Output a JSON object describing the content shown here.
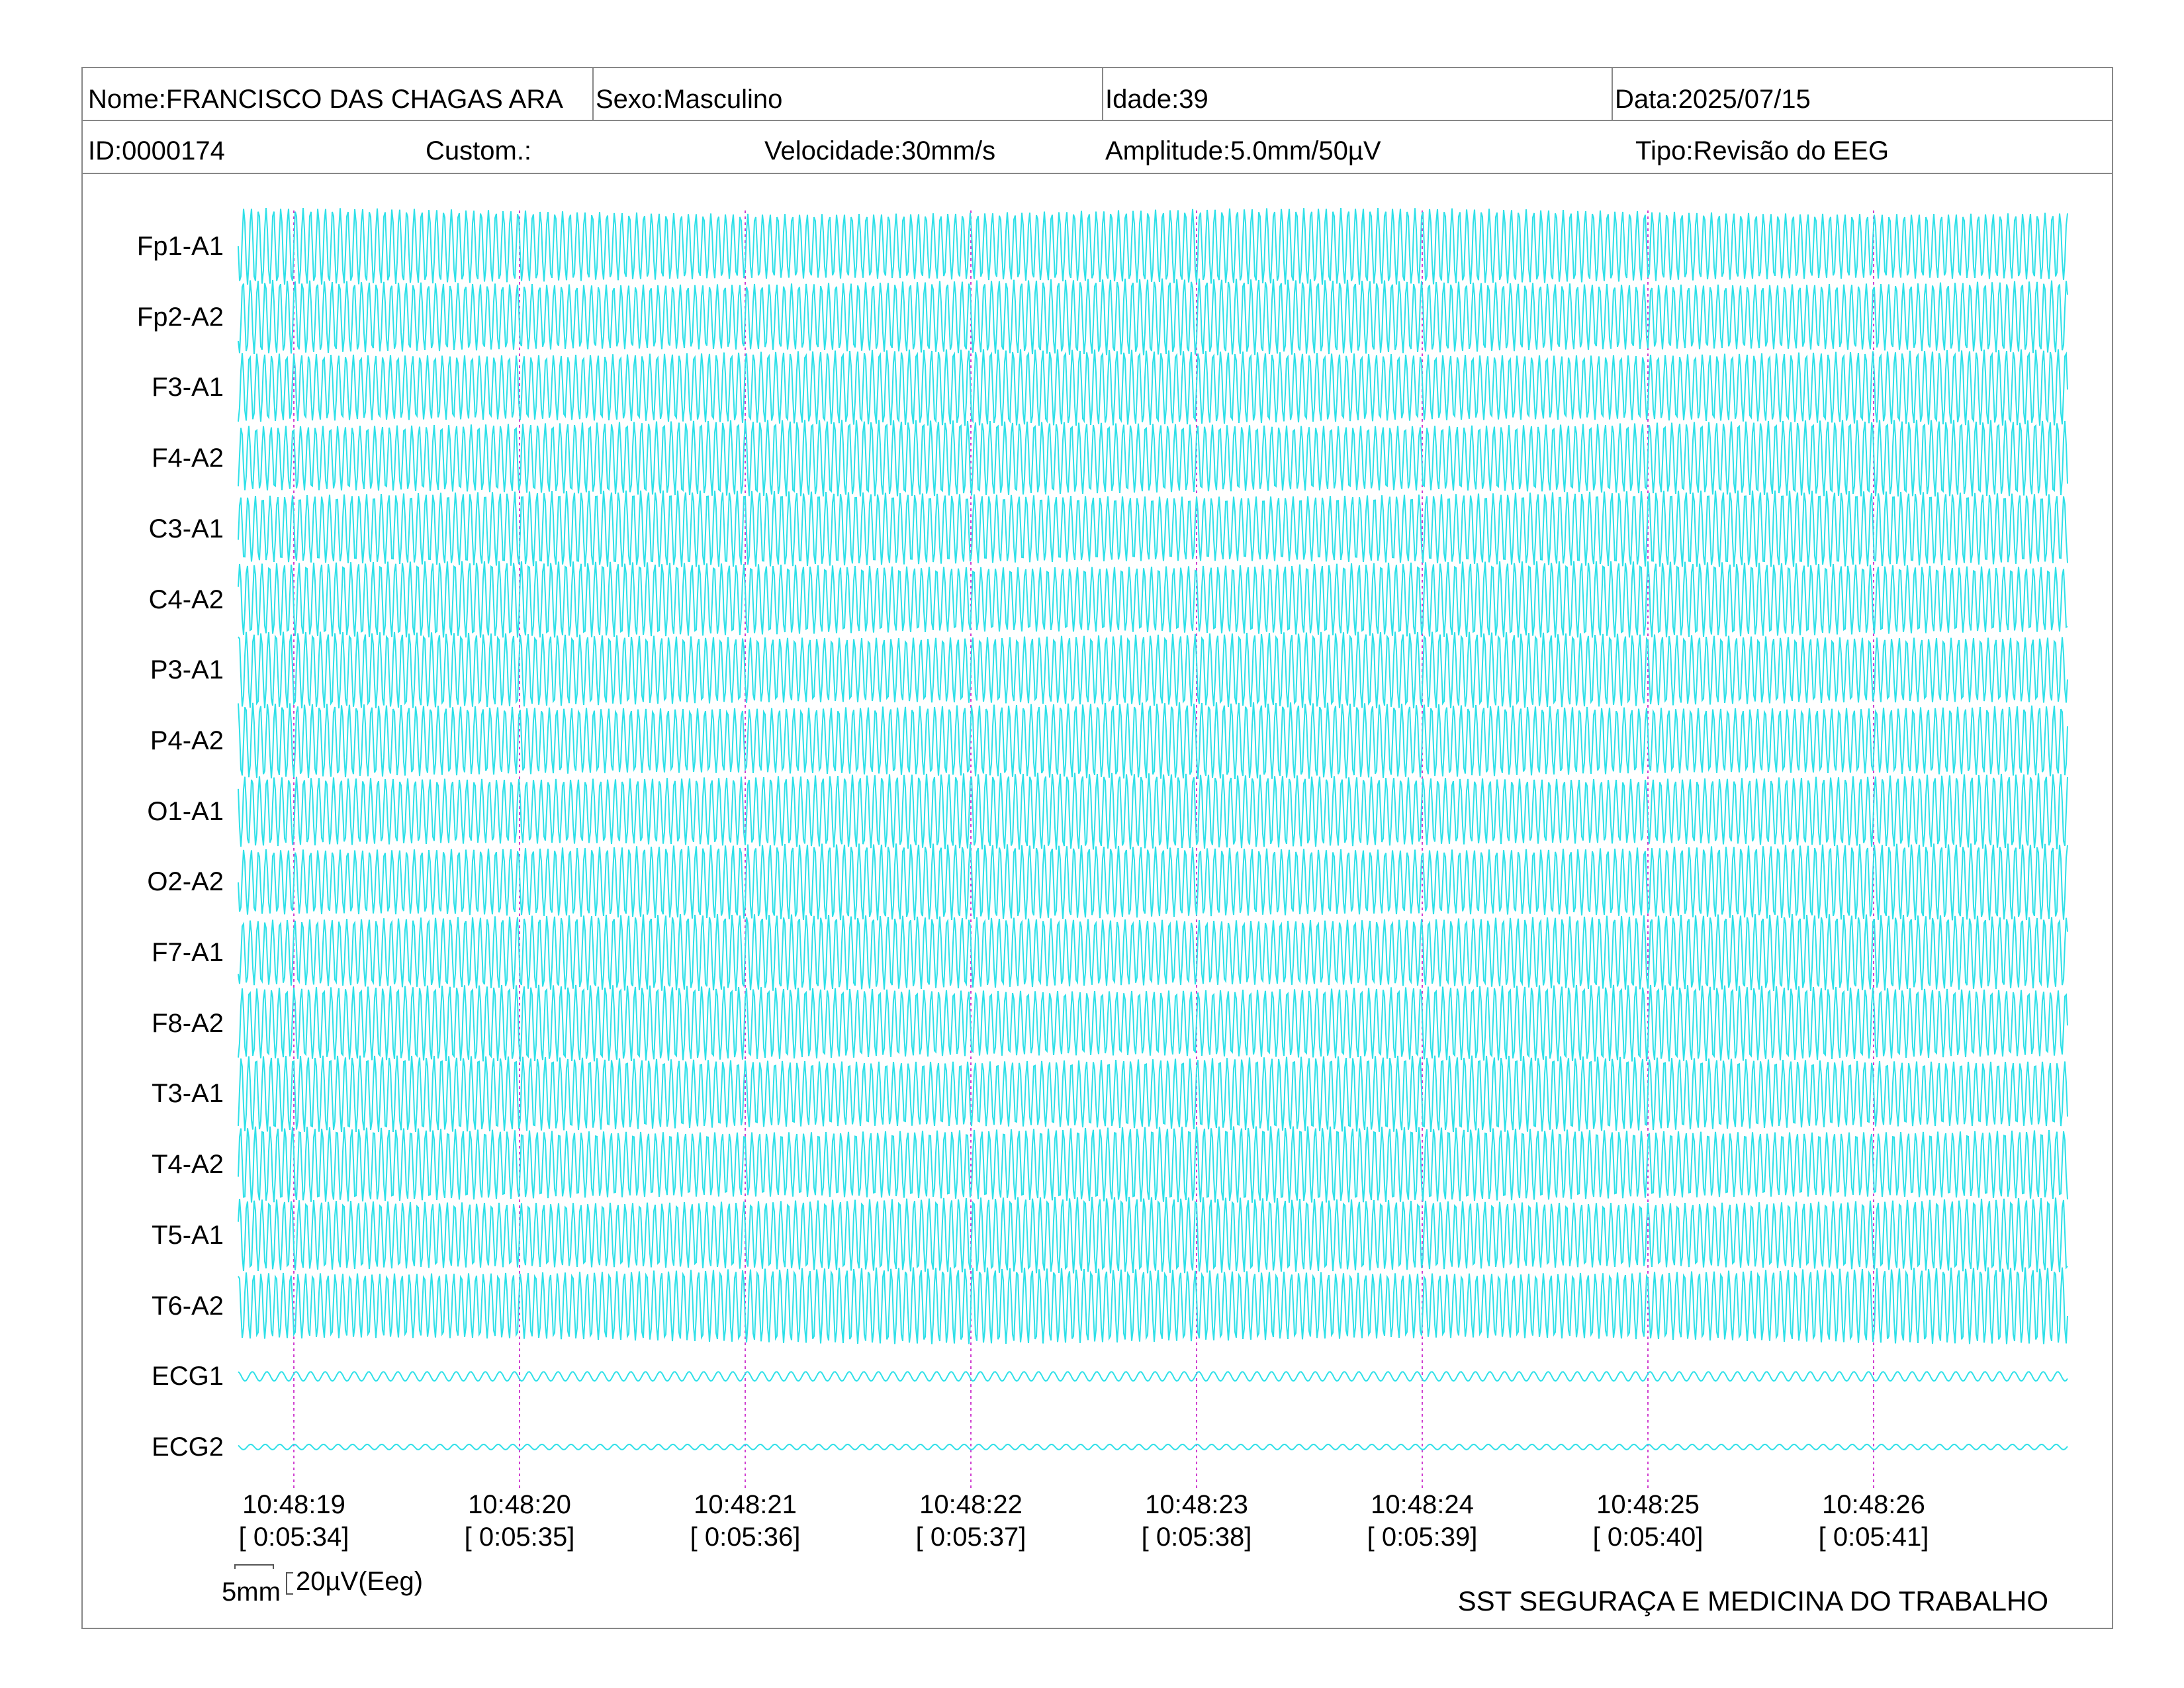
{
  "header": {
    "nome": "Nome:FRANCISCO DAS CHAGAS ARA",
    "sexo": "Sexo:Masculino",
    "idade": "Idade:39",
    "data": "Data:2025/07/15",
    "id": "ID:0000174",
    "custom": "Custom.:",
    "velocidade": "Velocidade:30mm/s",
    "amplitude": "Amplitude:5.0mm/50µV",
    "tipo": "Tipo:Revisão do EEG"
  },
  "channels": [
    "Fp1-A1",
    "Fp2-A2",
    "F3-A1",
    "F4-A2",
    "C3-A1",
    "C4-A2",
    "P3-A1",
    "P4-A2",
    "O1-A1",
    "O2-A2",
    "F7-A1",
    "F8-A2",
    "T3-A1",
    "T4-A2",
    "T5-A1",
    "T6-A2",
    "ECG1",
    "ECG2"
  ],
  "time_marks": [
    {
      "time": "10:48:19",
      "elapsed": "[ 0:05:34]"
    },
    {
      "time": "10:48:20",
      "elapsed": "[ 0:05:35]"
    },
    {
      "time": "10:48:21",
      "elapsed": "[ 0:05:36]"
    },
    {
      "time": "10:48:22",
      "elapsed": "[ 0:05:37]"
    },
    {
      "time": "10:48:23",
      "elapsed": "[ 0:05:38]"
    },
    {
      "time": "10:48:24",
      "elapsed": "[ 0:05:39]"
    },
    {
      "time": "10:48:25",
      "elapsed": "[ 0:05:40]"
    },
    {
      "time": "10:48:26",
      "elapsed": "[ 0:05:41]"
    }
  ],
  "calibration": {
    "time_label": "5mm",
    "amp_label": "20µV(Eeg)"
  },
  "footer": "SST SEGURAÇA E MEDICINA DO TRABALHO",
  "colors": {
    "trace": "#2fe0e8",
    "marker": "#d040d0",
    "border": "#888888"
  }
}
